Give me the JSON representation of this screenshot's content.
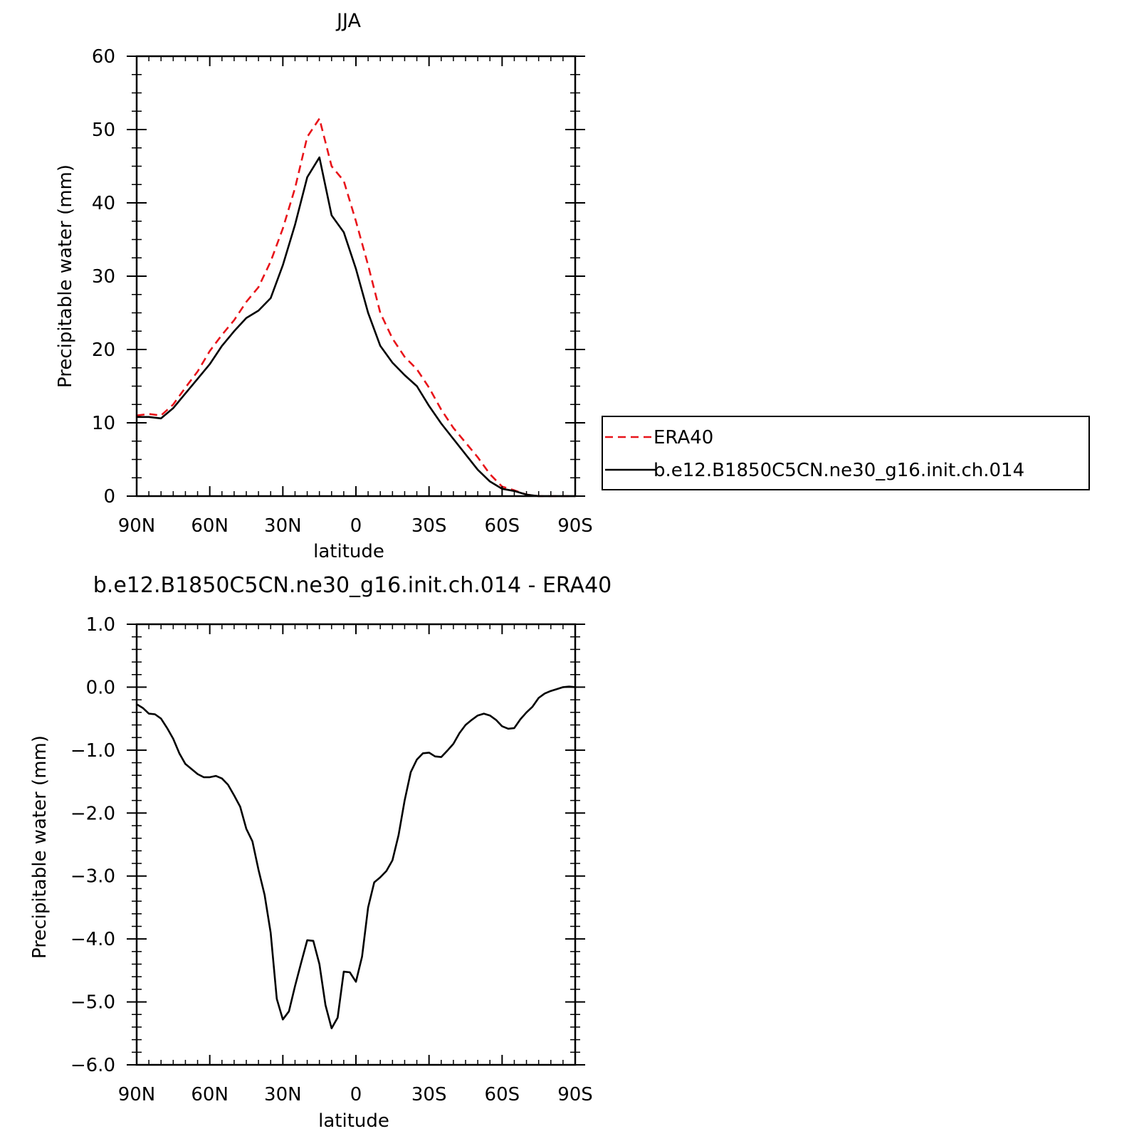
{
  "chart_data": [
    {
      "type": "line",
      "title": "JJA",
      "xlabel": "latitude",
      "ylabel": "Precipitable water (mm)",
      "xlim": [
        90,
        -90
      ],
      "ylim": [
        0,
        60
      ],
      "x_ticks": [
        90,
        60,
        30,
        0,
        -30,
        -60,
        -90
      ],
      "x_tick_labels": [
        "90N",
        "60N",
        "30N",
        "0",
        "30S",
        "60S",
        "90S"
      ],
      "y_ticks": [
        0,
        10,
        20,
        30,
        40,
        50,
        60
      ],
      "y_tick_labels": [
        "0",
        "10",
        "20",
        "30",
        "40",
        "50",
        "60"
      ],
      "grid": false,
      "legend_position": "right",
      "x": [
        90,
        85,
        80,
        75,
        70,
        65,
        60,
        55,
        50,
        45,
        40,
        35,
        30,
        25,
        20,
        15,
        10,
        5,
        0,
        -5,
        -10,
        -15,
        -20,
        -25,
        -30,
        -35,
        -40,
        -45,
        -50,
        -55,
        -60,
        -65,
        -70,
        -75,
        -80,
        -85,
        -90
      ],
      "series": [
        {
          "name": "ERA40",
          "color": "#e8141a",
          "dash": "dashed",
          "values": [
            11.0,
            11.2,
            11.0,
            12.5,
            14.8,
            17.0,
            19.8,
            22.0,
            24.0,
            26.5,
            28.5,
            32.0,
            36.5,
            42.0,
            49.0,
            51.5,
            45.0,
            43.0,
            37.5,
            31.5,
            25.0,
            21.5,
            19.0,
            17.3,
            14.8,
            11.8,
            9.3,
            7.3,
            5.3,
            3.0,
            1.3,
            0.8,
            0.2,
            0.0,
            0.0,
            0.0,
            0.0
          ]
        },
        {
          "name": "b.e12.B1850C5CN.ne30_g16.init.ch.014",
          "color": "#000000",
          "dash": "solid",
          "values": [
            10.8,
            10.8,
            10.6,
            12.0,
            14.0,
            16.0,
            18.0,
            20.5,
            22.5,
            24.3,
            25.3,
            27.0,
            31.5,
            37.0,
            43.5,
            46.2,
            38.3,
            36.0,
            31.0,
            25.0,
            20.5,
            18.2,
            16.5,
            15.0,
            12.3,
            9.9,
            7.8,
            5.7,
            3.6,
            2.0,
            1.0,
            0.7,
            0.2,
            0.0,
            0.0,
            0.0,
            0.0
          ]
        }
      ]
    },
    {
      "type": "line",
      "title": "b.e12.B1850C5CN.ne30_g16.init.ch.014 - ERA40",
      "xlabel": "latitude",
      "ylabel": "Precipitable water (mm)",
      "xlim": [
        90,
        -90
      ],
      "ylim": [
        -6,
        1
      ],
      "x_ticks": [
        90,
        60,
        30,
        0,
        -30,
        -60,
        -90
      ],
      "x_tick_labels": [
        "90N",
        "60N",
        "30N",
        "0",
        "30S",
        "60S",
        "90S"
      ],
      "y_ticks": [
        1,
        0,
        -1,
        -2,
        -3,
        -4,
        -5,
        -6
      ],
      "y_tick_labels": [
        "1.0",
        "0.0",
        "−1.0",
        "−2.0",
        "−3.0",
        "−4.0",
        "−5.0",
        "−6.0"
      ],
      "grid": false,
      "x": [
        90,
        87.5,
        85,
        82.5,
        80,
        77.5,
        75,
        72.5,
        70,
        67.5,
        65,
        62.5,
        60,
        57.5,
        55,
        52.5,
        50,
        47.5,
        45,
        42.5,
        40,
        37.5,
        35,
        32.5,
        30,
        27.5,
        25,
        22.5,
        20,
        17.5,
        15,
        12.5,
        10,
        7.5,
        5,
        2.5,
        0,
        -2.5,
        -5,
        -7.5,
        -10,
        -12.5,
        -15,
        -17.5,
        -20,
        -22.5,
        -25,
        -27.5,
        -30,
        -32.5,
        -35,
        -37.5,
        -40,
        -42.5,
        -45,
        -47.5,
        -50,
        -52.5,
        -55,
        -57.5,
        -60,
        -62.5,
        -65,
        -67.5,
        -70,
        -72.5,
        -75,
        -77.5,
        -80,
        -82.5,
        -85,
        -87.5,
        -90
      ],
      "series": [
        {
          "name": "",
          "color": "#000000",
          "dash": "solid",
          "values": [
            -0.27,
            -0.33,
            -0.42,
            -0.43,
            -0.5,
            -0.65,
            -0.82,
            -1.05,
            -1.22,
            -1.3,
            -1.38,
            -1.43,
            -1.43,
            -1.41,
            -1.45,
            -1.55,
            -1.72,
            -1.9,
            -2.25,
            -2.45,
            -2.9,
            -3.3,
            -3.9,
            -4.95,
            -5.28,
            -5.15,
            -4.75,
            -4.38,
            -4.02,
            -4.03,
            -4.4,
            -5.05,
            -5.42,
            -5.25,
            -4.52,
            -4.53,
            -4.68,
            -4.28,
            -3.5,
            -3.1,
            -3.02,
            -2.92,
            -2.75,
            -2.35,
            -1.8,
            -1.35,
            -1.15,
            -1.05,
            -1.04,
            -1.1,
            -1.11,
            -1.01,
            -0.9,
            -0.73,
            -0.6,
            -0.52,
            -0.45,
            -0.42,
            -0.45,
            -0.52,
            -0.62,
            -0.66,
            -0.65,
            -0.51,
            -0.4,
            -0.31,
            -0.17,
            -0.1,
            -0.06,
            -0.03,
            0.0,
            0.01,
            0.0
          ]
        }
      ]
    }
  ]
}
